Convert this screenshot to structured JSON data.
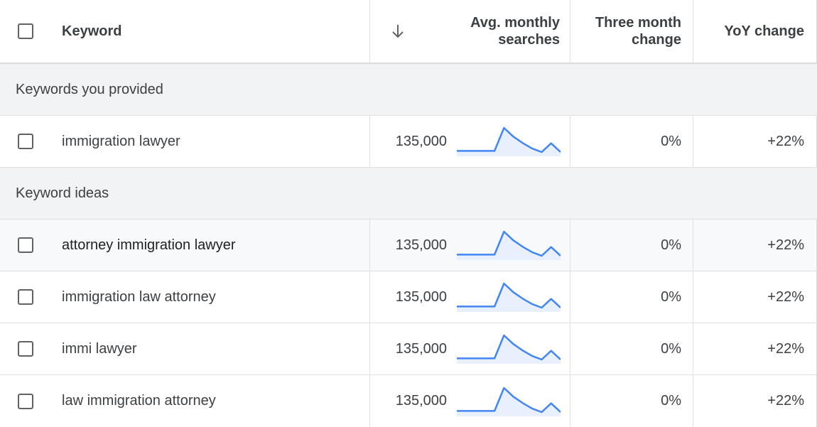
{
  "header": {
    "keyword": "Keyword",
    "avg_monthly_line1": "Avg. monthly",
    "avg_monthly_line2": "searches",
    "three_month_line1": "Three month",
    "three_month_line2": "change",
    "yoy": "YoY change"
  },
  "groups": {
    "provided": "Keywords you provided",
    "ideas": "Keyword ideas"
  },
  "provided_rows": [
    {
      "keyword": "immigration lawyer",
      "avg": "135,000",
      "three_month": "0%",
      "yoy": "+22%"
    }
  ],
  "idea_rows": [
    {
      "keyword": "attorney immigration lawyer",
      "avg": "135,000",
      "three_month": "0%",
      "yoy": "+22%"
    },
    {
      "keyword": "immigration law attorney",
      "avg": "135,000",
      "three_month": "0%",
      "yoy": "+22%"
    },
    {
      "keyword": "immi lawyer",
      "avg": "135,000",
      "three_month": "0%",
      "yoy": "+22%"
    },
    {
      "keyword": "law immigration attorney",
      "avg": "135,000",
      "three_month": "0%",
      "yoy": "+22%"
    }
  ],
  "sparkline": {
    "trend_values": [
      0,
      0,
      0,
      0,
      0,
      1.0,
      0.62,
      0.34,
      0.1,
      -0.05,
      0.33,
      -0.05
    ],
    "line_color": "#4285f4",
    "fill_color": "#e8f0fe"
  },
  "icons": {
    "sort": "arrow-down-icon"
  }
}
